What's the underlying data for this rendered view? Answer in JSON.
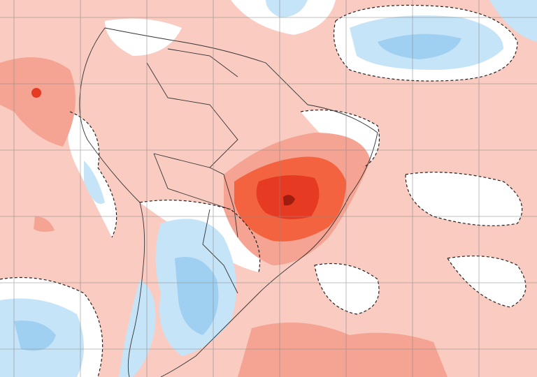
{
  "map": {
    "colors": {
      "background_anomaly": "#f9cbc1",
      "moderate_warm": "#f5a392",
      "warm": "#f4633f",
      "strong_warm": "#e63a22",
      "extreme_warm": "#9e1d10",
      "neutral": "#ffffff",
      "cool": "#c6e4f7",
      "moderate_cool": "#9fd0f2",
      "grid": "#8a8a8a",
      "borders": "#333333"
    }
  }
}
